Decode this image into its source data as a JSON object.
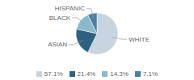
{
  "chart_data": {
    "type": "pie",
    "categories": [
      "WHITE",
      "ASIAN",
      "BLACK",
      "HISPANIC"
    ],
    "values": [
      57.1,
      21.4,
      14.3,
      7.1
    ],
    "value_labels": [
      "57.1%",
      "21.4%",
      "14.3%",
      "7.1%"
    ],
    "colors": [
      "#c8d4e0",
      "#2e6080",
      "#8cb8cc",
      "#4a7fa0"
    ],
    "legend": "bottom"
  }
}
